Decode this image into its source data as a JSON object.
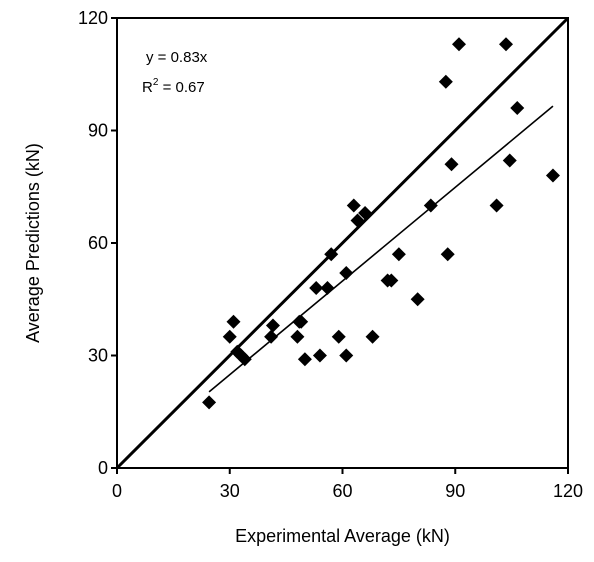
{
  "chart_data": {
    "type": "scatter",
    "xlabel": "Experimental Average (kN)",
    "ylabel": "Average Predictions (kN)",
    "xlim": [
      0,
      120
    ],
    "ylim": [
      0,
      120
    ],
    "xticks": [
      "0",
      "30",
      "60",
      "90",
      "120"
    ],
    "yticks": [
      "0",
      "30",
      "60",
      "90",
      "120"
    ],
    "grid": false,
    "marker": "diamond",
    "marker_color": "#000000",
    "annotation": {
      "equation": "y = 0.83x",
      "r2_prefix": "R",
      "r2_sup": "2",
      "r2_suffix": " = 0.67"
    },
    "reference_line": {
      "x": [
        0,
        120
      ],
      "y": [
        0,
        120
      ]
    },
    "trend_line": {
      "x": [
        24.5,
        116
      ],
      "y": [
        20.3,
        96.5
      ]
    },
    "points": [
      {
        "x": 24.5,
        "y": 17.5
      },
      {
        "x": 30,
        "y": 35
      },
      {
        "x": 31,
        "y": 39
      },
      {
        "x": 32,
        "y": 31
      },
      {
        "x": 33,
        "y": 30
      },
      {
        "x": 34,
        "y": 29
      },
      {
        "x": 41,
        "y": 35
      },
      {
        "x": 41.5,
        "y": 38
      },
      {
        "x": 48,
        "y": 35
      },
      {
        "x": 48.5,
        "y": 39
      },
      {
        "x": 49,
        "y": 39
      },
      {
        "x": 50,
        "y": 29
      },
      {
        "x": 53,
        "y": 48
      },
      {
        "x": 54,
        "y": 30
      },
      {
        "x": 56,
        "y": 48
      },
      {
        "x": 57,
        "y": 57
      },
      {
        "x": 59,
        "y": 35
      },
      {
        "x": 61,
        "y": 30
      },
      {
        "x": 61,
        "y": 52
      },
      {
        "x": 63,
        "y": 70
      },
      {
        "x": 64,
        "y": 66
      },
      {
        "x": 66,
        "y": 68
      },
      {
        "x": 68,
        "y": 35
      },
      {
        "x": 72,
        "y": 50
      },
      {
        "x": 73,
        "y": 50
      },
      {
        "x": 75,
        "y": 57
      },
      {
        "x": 80,
        "y": 45
      },
      {
        "x": 83.5,
        "y": 70
      },
      {
        "x": 87.5,
        "y": 103
      },
      {
        "x": 88,
        "y": 57
      },
      {
        "x": 89,
        "y": 81
      },
      {
        "x": 91,
        "y": 113
      },
      {
        "x": 101,
        "y": 70
      },
      {
        "x": 103.5,
        "y": 113
      },
      {
        "x": 104.5,
        "y": 82
      },
      {
        "x": 106.5,
        "y": 96
      },
      {
        "x": 116,
        "y": 78
      }
    ]
  }
}
